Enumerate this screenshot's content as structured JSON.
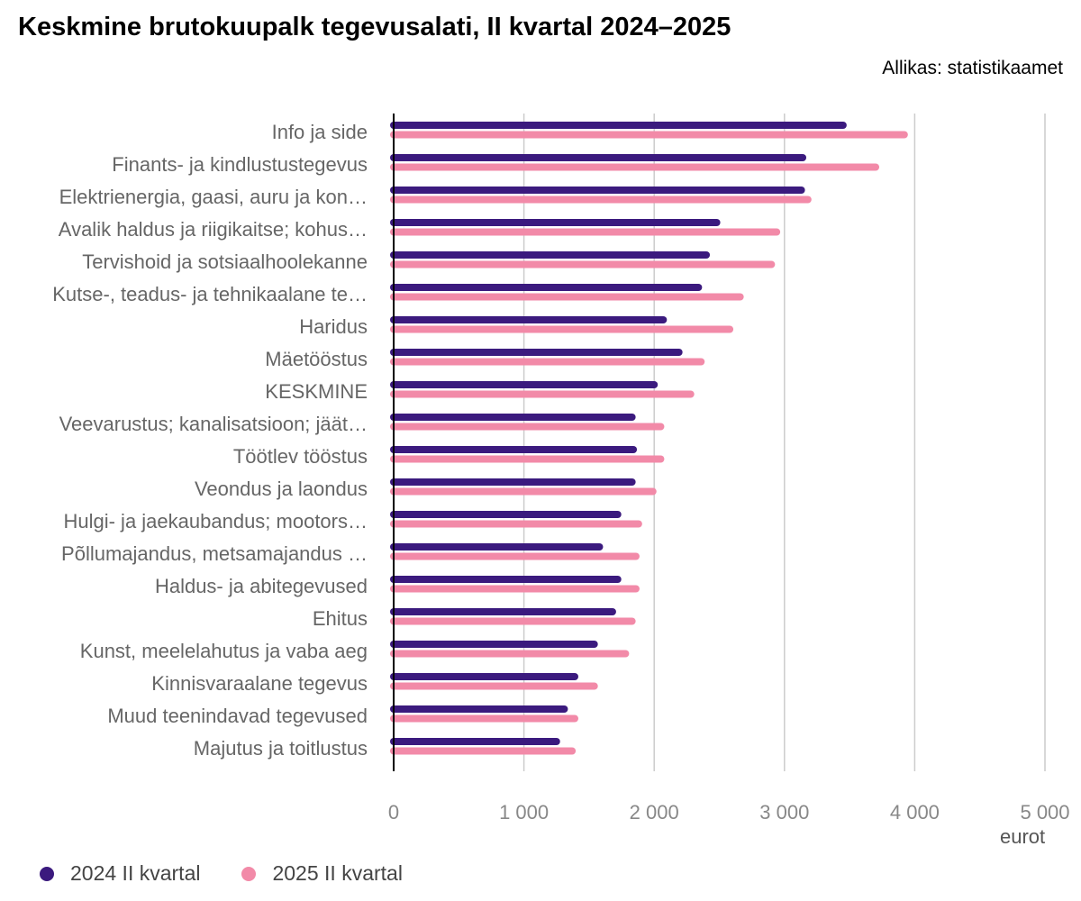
{
  "title": "Keskmine brutokuupalk tegevusalati, II kvartal 2024–2025",
  "source": "Allikas: statistikaamet",
  "unit_label": "eurot",
  "colors": {
    "series_2024": "#3b1a7e",
    "series_2025": "#f28aa8",
    "gridline": "#cccccc",
    "axis": "#000000"
  },
  "legend": [
    {
      "label": "2024 II kvartal",
      "color": "#3b1a7e"
    },
    {
      "label": "2025 II kvartal",
      "color": "#f28aa8"
    }
  ],
  "chart_data": {
    "type": "bar",
    "orientation": "horizontal",
    "title": "Keskmine brutokuupalk tegevusalati, II kvartal 2024–2025",
    "xlabel": "eurot",
    "ylabel": "",
    "xlim": [
      0,
      5000
    ],
    "xticks": [
      0,
      1000,
      2000,
      3000,
      4000,
      5000
    ],
    "xtick_labels": [
      "0",
      "1 000",
      "2 000",
      "3 000",
      "4 000",
      "5 000"
    ],
    "grid": true,
    "legend_position": "bottom-left",
    "categories": [
      "Info ja side",
      "Finants- ja kindlustustegevus",
      "Elektrienergia, gaasi, auru ja kon…",
      "Avalik haldus ja riigikaitse; kohus…",
      "Tervishoid ja sotsiaalhoolekanne",
      "Kutse-, teadus- ja tehnikaalane te…",
      "Haridus",
      "Mäetööstus",
      "KESKMINE",
      "Veevarustus; kanalisatsioon; jäät…",
      "Töötlev tööstus",
      "Veondus ja laondus",
      "Hulgi- ja jaekaubandus; mootors…",
      "Põllumajandus, metsamajandus …",
      "Haldus- ja abitegevused",
      "Ehitus",
      "Kunst, meelelahutus ja vaba aeg",
      "Kinnisvaraalane tegevus",
      "Muud teenindavad tegevused",
      "Majutus ja toitlustus"
    ],
    "series": [
      {
        "name": "2024 II kvartal",
        "color": "#3b1a7e",
        "values": [
          3450,
          3140,
          3130,
          2480,
          2400,
          2340,
          2070,
          2190,
          2000,
          1830,
          1840,
          1830,
          1720,
          1580,
          1720,
          1680,
          1540,
          1390,
          1310,
          1250
        ]
      },
      {
        "name": "2025 II kvartal",
        "color": "#f28aa8",
        "values": [
          3920,
          3700,
          3180,
          2940,
          2900,
          2660,
          2580,
          2360,
          2280,
          2050,
          2050,
          1990,
          1880,
          1860,
          1860,
          1830,
          1780,
          1540,
          1390,
          1370
        ]
      }
    ]
  }
}
